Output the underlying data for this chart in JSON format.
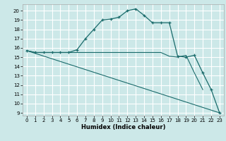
{
  "title": "",
  "xlabel": "Humidex (Indice chaleur)",
  "bg_color": "#cce8e8",
  "grid_color": "#ffffff",
  "line_color": "#1a6b6b",
  "xlim": [
    -0.5,
    23.5
  ],
  "ylim": [
    8.7,
    20.7
  ],
  "yticks": [
    9,
    10,
    11,
    12,
    13,
    14,
    15,
    16,
    17,
    18,
    19,
    20
  ],
  "xticks": [
    0,
    1,
    2,
    3,
    4,
    5,
    6,
    7,
    8,
    9,
    10,
    11,
    12,
    13,
    14,
    15,
    16,
    17,
    18,
    19,
    20,
    21,
    22,
    23
  ],
  "line1_x": [
    0,
    1,
    2,
    3,
    4,
    5,
    6,
    7,
    8,
    9,
    10,
    11,
    12,
    13,
    14,
    15,
    16,
    17,
    18,
    19,
    20,
    21,
    22,
    23
  ],
  "line1_y": [
    15.7,
    15.5,
    15.5,
    15.5,
    15.5,
    15.5,
    15.8,
    17.0,
    18.0,
    19.0,
    19.1,
    19.3,
    20.0,
    20.2,
    19.5,
    18.7,
    18.7,
    18.7,
    15.1,
    15.0,
    15.2,
    13.3,
    11.5,
    9.0
  ],
  "line2_x": [
    0,
    1,
    2,
    3,
    4,
    5,
    6,
    7,
    8,
    9,
    10,
    11,
    12,
    13,
    14,
    15,
    16,
    17,
    18,
    19,
    20,
    21
  ],
  "line2_y": [
    15.7,
    15.5,
    15.5,
    15.5,
    15.5,
    15.5,
    15.5,
    15.5,
    15.5,
    15.5,
    15.5,
    15.5,
    15.5,
    15.5,
    15.5,
    15.5,
    15.5,
    15.1,
    15.0,
    15.2,
    13.3,
    11.5
  ],
  "line3_x": [
    0,
    23
  ],
  "line3_y": [
    15.7,
    9.0
  ]
}
